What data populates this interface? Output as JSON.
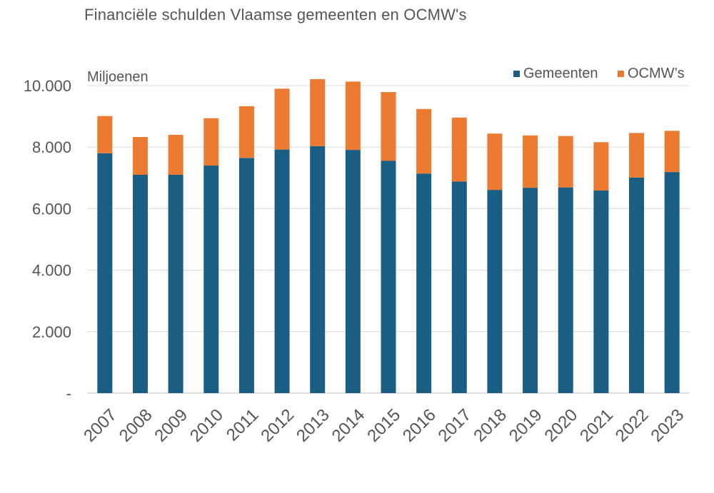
{
  "chart_data": {
    "type": "bar",
    "stacked": true,
    "title": "Financiële schulden Vlaamse gemeenten en OCMW's",
    "unit_label": "Miljoenen",
    "xlabel": "",
    "ylabel": "",
    "ylim": [
      0,
      10000
    ],
    "yticks": [
      {
        "value": 0,
        "label": "-"
      },
      {
        "value": 2000,
        "label": "2.000"
      },
      {
        "value": 4000,
        "label": "4.000"
      },
      {
        "value": 6000,
        "label": "6.000"
      },
      {
        "value": 8000,
        "label": "8.000"
      },
      {
        "value": 10000,
        "label": "10.000"
      }
    ],
    "grid": true,
    "legend_position": "top-right",
    "categories": [
      "2007",
      "2008",
      "2009",
      "2010",
      "2011",
      "2012",
      "2013",
      "2014",
      "2015",
      "2016",
      "2017",
      "2018",
      "2019",
      "2020",
      "2021",
      "2022",
      "2023"
    ],
    "series": [
      {
        "name": "Gemeenten",
        "color": "#1b5e84",
        "values": [
          7800,
          7100,
          7100,
          7400,
          7650,
          7920,
          8030,
          7910,
          7560,
          7140,
          6880,
          6610,
          6680,
          6690,
          6590,
          7010,
          7190
        ]
      },
      {
        "name": "OCMW’s",
        "color": "#ec7a31",
        "values": [
          1210,
          1230,
          1300,
          1540,
          1680,
          1980,
          2180,
          2220,
          2230,
          2100,
          2080,
          1830,
          1700,
          1670,
          1570,
          1450,
          1340
        ]
      }
    ]
  }
}
